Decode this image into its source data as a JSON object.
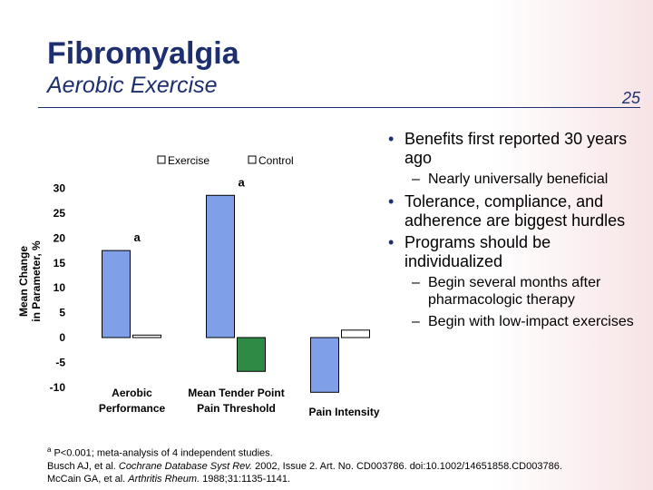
{
  "slide": {
    "title": "Fibromyalgia",
    "subtitle": "Aerobic Exercise",
    "page_number": "25",
    "bullets": [
      {
        "text": "Benefits first reported 30 years ago",
        "sub": [
          "Nearly universally beneficial"
        ]
      },
      {
        "text": "Tolerance, compliance, and adherence are biggest hurdles",
        "sub": []
      },
      {
        "text": "Programs should be individualized",
        "sub": [
          "Begin several months after pharmacologic therapy",
          "Begin with low-impact exercises"
        ]
      }
    ],
    "footnote": {
      "marker": "a",
      "text": "P<0.001; meta-analysis of 4 independent studies.",
      "references": [
        [
          {
            "text": "Busch AJ, et al. ",
            "italic": false
          },
          {
            "text": "Cochrane Database Syst Rev.",
            "italic": true
          },
          {
            "text": " 2002, Issue 2. Art. No. CD003786. doi:10.1002/14651858.CD003786.",
            "italic": false
          }
        ],
        [
          {
            "text": "McCain GA, et al. ",
            "italic": false
          },
          {
            "text": "Arthritis Rheum.",
            "italic": true
          },
          {
            "text": " 1988;31:1135-1141.",
            "italic": false
          }
        ]
      ]
    }
  },
  "chart_data": {
    "type": "bar",
    "ylabel_lines": [
      "Mean Change",
      "in Parameter, %"
    ],
    "categories": [
      "Aerobic Performance",
      "Mean Tender Point Pain Threshold",
      "Pain Intensity"
    ],
    "series": [
      {
        "name": "Exercise",
        "color": "#7f9fe8",
        "values": [
          17.5,
          28.6,
          -11
        ]
      },
      {
        "name": "Control",
        "color": "#ffffff",
        "colors": [
          "#ffffff",
          "#2e8b45",
          "#ffffff"
        ],
        "values": [
          0.5,
          -6.8,
          1.5
        ]
      }
    ],
    "annotations": [
      {
        "text": "a",
        "series": 0,
        "category": 0
      },
      {
        "text": "a",
        "series": 0,
        "category": 1
      }
    ],
    "ylim": [
      -11,
      30
    ],
    "yticks": [
      30,
      25,
      20,
      15,
      10,
      5,
      0,
      -5,
      -10
    ],
    "grid": false
  }
}
